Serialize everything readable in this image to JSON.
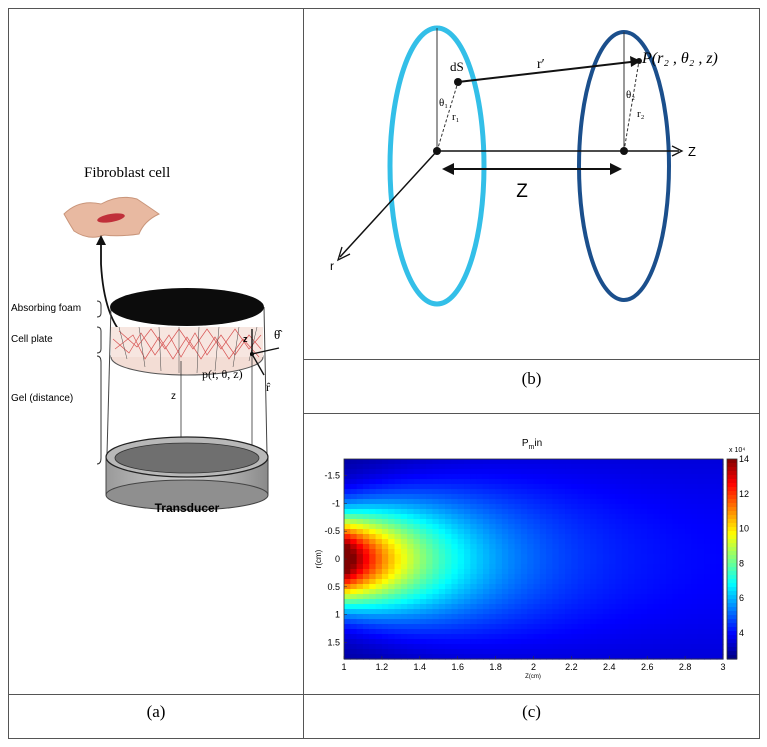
{
  "panel_a": {
    "caption": "(a)",
    "cell_label": "Fibroblast cell",
    "layers": [
      "Absorbing foam",
      "Cell plate",
      "Gel (distance)"
    ],
    "transducer_label": "Transducer",
    "point_label": "p(r, θ, z)",
    "axis_z": "z",
    "axis_theta": "θ̂",
    "axis_r": "r̂",
    "distance_z": "z",
    "angle_theta": "θ"
  },
  "panel_b": {
    "caption": "(b)",
    "ds": "dS",
    "r_prime": "r′",
    "point": "P(r₂ , θ₂ , z)",
    "theta1": "θ₁",
    "r1": "r₁",
    "theta2": "θ₂",
    "r2": "r₂",
    "z_axis": "Z",
    "z_dist": "Z",
    "r_axis": "r"
  },
  "panel_c": {
    "caption": "(c)",
    "colors": {
      "low": "#0a1faa",
      "mid": "#2fe6d2",
      "high": "#c00000"
    },
    "chart_data": {
      "type": "heatmap",
      "title": "P_in",
      "xlabel": "Z(cm)",
      "ylabel": "r(cm)",
      "xlim": [
        1,
        3
      ],
      "ylim": [
        -1.8,
        1.8
      ],
      "x_ticks": [
        "1",
        "1.2",
        "1.4",
        "1.6",
        "1.8",
        "2",
        "2.2",
        "2.4",
        "2.6",
        "2.8",
        "3"
      ],
      "y_ticks": [
        "-1.5",
        "-1",
        "-0.5",
        "0",
        "0.5",
        "1",
        "1.5"
      ],
      "colorbar_ticks": [
        "4",
        "6",
        "8",
        "10",
        "12",
        "14"
      ],
      "colorbar_multiplier": "x 10⁴",
      "colorbar_range": [
        2.5,
        14
      ]
    }
  }
}
